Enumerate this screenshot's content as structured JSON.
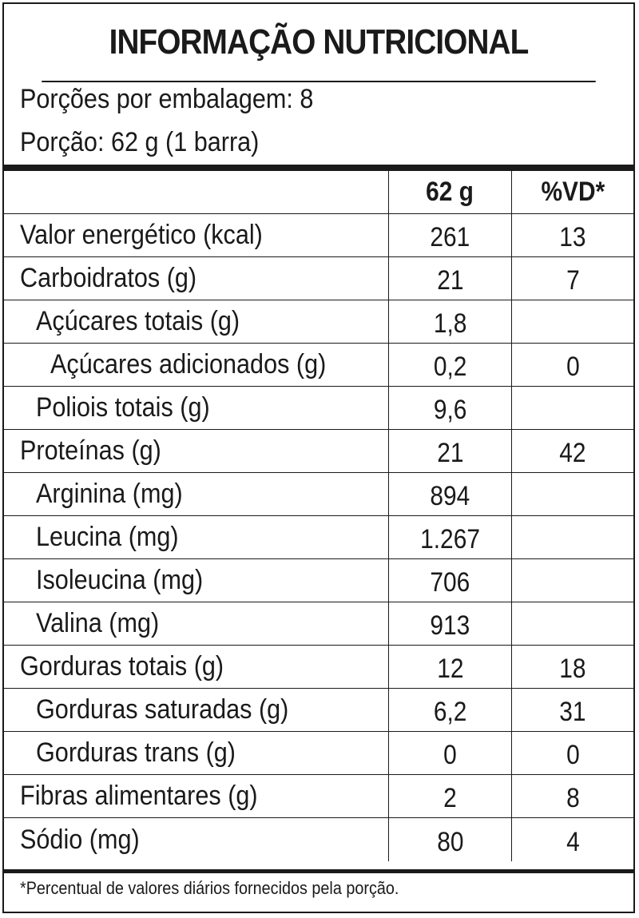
{
  "title": "INFORMAÇÃO NUTRICIONAL",
  "servings_per_package": "Porções por embalagem: 8",
  "serving_size": "Porção: 62 g (1 barra)",
  "header": {
    "qty": "62 g",
    "vd": "%VD*"
  },
  "rows": [
    {
      "name": "Valor energético (kcal)",
      "qty": "261",
      "vd": "13",
      "indent": 0
    },
    {
      "name": "Carboidratos (g)",
      "qty": "21",
      "vd": "7",
      "indent": 0
    },
    {
      "name": "Açúcares totais (g)",
      "qty": "1,8",
      "vd": "",
      "indent": 1
    },
    {
      "name": "Açúcares adicionados (g)",
      "qty": "0,2",
      "vd": "0",
      "indent": 2
    },
    {
      "name": "Poliois totais (g)",
      "qty": "9,6",
      "vd": "",
      "indent": 1
    },
    {
      "name": "Proteínas (g)",
      "qty": "21",
      "vd": "42",
      "indent": 0
    },
    {
      "name": "Arginina (mg)",
      "qty": "894",
      "vd": "",
      "indent": 1
    },
    {
      "name": "Leucina (mg)",
      "qty": "1.267",
      "vd": "",
      "indent": 1
    },
    {
      "name": "Isoleucina (mg)",
      "qty": "706",
      "vd": "",
      "indent": 1
    },
    {
      "name": "Valina (mg)",
      "qty": "913",
      "vd": "",
      "indent": 1
    },
    {
      "name": "Gorduras totais (g)",
      "qty": "12",
      "vd": "18",
      "indent": 0
    },
    {
      "name": "Gorduras saturadas (g)",
      "qty": "6,2",
      "vd": "31",
      "indent": 1
    },
    {
      "name": "Gorduras trans (g)",
      "qty": "0",
      "vd": "0",
      "indent": 1
    },
    {
      "name": "Fibras alimentares (g)",
      "qty": "2",
      "vd": "8",
      "indent": 0
    },
    {
      "name": "Sódio (mg)",
      "qty": "80",
      "vd": "4",
      "indent": 0
    }
  ],
  "footnote": "*Percentual de valores diários fornecidos pela porção."
}
